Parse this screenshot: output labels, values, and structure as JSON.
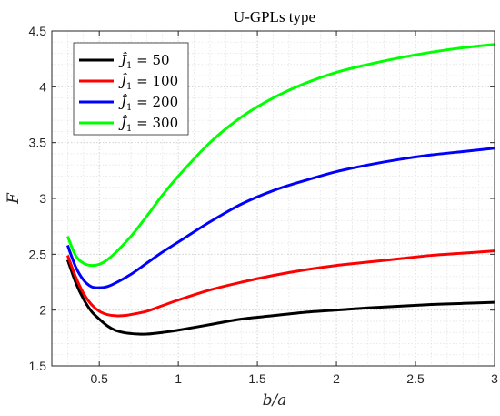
{
  "chart_data": {
    "type": "line",
    "title": "U-GPLs type",
    "xlabel": "b/a",
    "ylabel": "F",
    "xlim": [
      0.2,
      3.0
    ],
    "ylim": [
      1.5,
      4.5
    ],
    "xticks": [
      "0.5",
      "1",
      "1.5",
      "2",
      "2.5",
      "3"
    ],
    "yticks": [
      "1.5",
      "2",
      "2.5",
      "3",
      "3.5",
      "4",
      "4.5"
    ],
    "grid": true,
    "grid_style": "dotted-major-minor",
    "legend_position": "top-left",
    "series": [
      {
        "name": "Ĵ1 = 50",
        "legend_value": "50",
        "color": "#000000",
        "x": [
          0.3,
          0.35,
          0.4,
          0.45,
          0.5,
          0.55,
          0.6,
          0.65,
          0.7,
          0.75,
          0.8,
          0.9,
          1.0,
          1.2,
          1.4,
          1.6,
          1.8,
          2.0,
          2.2,
          2.4,
          2.6,
          2.8,
          3.0
        ],
        "values": [
          2.45,
          2.25,
          2.1,
          1.99,
          1.92,
          1.86,
          1.82,
          1.8,
          1.79,
          1.785,
          1.785,
          1.8,
          1.82,
          1.87,
          1.92,
          1.95,
          1.98,
          2.0,
          2.02,
          2.035,
          2.05,
          2.06,
          2.07
        ]
      },
      {
        "name": "Ĵ1 = 100",
        "legend_value": "100",
        "color": "#ff0000",
        "x": [
          0.3,
          0.35,
          0.4,
          0.45,
          0.5,
          0.55,
          0.6,
          0.65,
          0.7,
          0.8,
          0.9,
          1.0,
          1.2,
          1.4,
          1.6,
          1.8,
          2.0,
          2.2,
          2.4,
          2.6,
          2.8,
          3.0
        ],
        "values": [
          2.49,
          2.3,
          2.15,
          2.05,
          1.99,
          1.96,
          1.95,
          1.95,
          1.96,
          1.99,
          2.04,
          2.09,
          2.18,
          2.25,
          2.31,
          2.36,
          2.4,
          2.43,
          2.46,
          2.49,
          2.51,
          2.53
        ]
      },
      {
        "name": "Ĵ1 = 200",
        "legend_value": "200",
        "color": "#0000ff",
        "x": [
          0.3,
          0.35,
          0.4,
          0.45,
          0.5,
          0.55,
          0.6,
          0.7,
          0.8,
          0.9,
          1.0,
          1.2,
          1.4,
          1.6,
          1.8,
          2.0,
          2.2,
          2.4,
          2.6,
          2.8,
          3.0
        ],
        "values": [
          2.58,
          2.39,
          2.27,
          2.21,
          2.2,
          2.21,
          2.24,
          2.32,
          2.42,
          2.52,
          2.61,
          2.79,
          2.95,
          3.07,
          3.16,
          3.24,
          3.3,
          3.35,
          3.39,
          3.42,
          3.45
        ]
      },
      {
        "name": "Ĵ1 = 300",
        "legend_value": "300",
        "color": "#00ff00",
        "x": [
          0.3,
          0.35,
          0.4,
          0.45,
          0.5,
          0.55,
          0.6,
          0.7,
          0.8,
          0.9,
          1.0,
          1.2,
          1.4,
          1.6,
          1.8,
          2.0,
          2.2,
          2.4,
          2.6,
          2.8,
          3.0
        ],
        "values": [
          2.66,
          2.49,
          2.42,
          2.4,
          2.41,
          2.45,
          2.51,
          2.66,
          2.84,
          3.03,
          3.2,
          3.5,
          3.73,
          3.9,
          4.03,
          4.13,
          4.2,
          4.26,
          4.31,
          4.35,
          4.38
        ]
      }
    ]
  }
}
